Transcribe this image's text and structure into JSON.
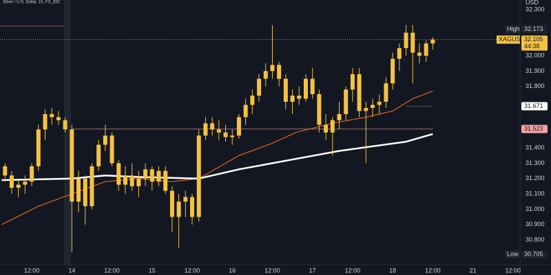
{
  "chart_data": {
    "type": "candlestick",
    "title": "Silver / U.S. Dollar, 1h, FX_IDC",
    "unit": "USD",
    "xlim": [
      -21.5,
      134.1
    ],
    "ylim": [
      30.639,
      32.363
    ],
    "xticks": [
      {
        "value": -12,
        "label": "12:00"
      },
      {
        "value": 0,
        "label": "14"
      },
      {
        "value": 12,
        "label": "12:00"
      },
      {
        "value": 24,
        "label": "15"
      },
      {
        "value": 36,
        "label": "12:00"
      },
      {
        "value": 48,
        "label": "16"
      },
      {
        "value": 60,
        "label": "12:00"
      },
      {
        "value": 72,
        "label": "17"
      },
      {
        "value": 84,
        "label": "12:00"
      },
      {
        "value": 96,
        "label": "18"
      },
      {
        "value": 108,
        "label": "12:00"
      },
      {
        "value": 120,
        "label": "21"
      },
      {
        "value": 132,
        "label": "12:00"
      }
    ],
    "yticks": [
      {
        "value": 32.3,
        "label": "32.300"
      },
      {
        "value": 32.0,
        "label": "32.000"
      },
      {
        "value": 31.9,
        "label": "31.900"
      },
      {
        "value": 31.8,
        "label": "31.800"
      },
      {
        "value": 31.4,
        "label": "31.400"
      },
      {
        "value": 31.3,
        "label": "31.300"
      },
      {
        "value": 31.2,
        "label": "31.200"
      },
      {
        "value": 31.1,
        "label": "31.100"
      },
      {
        "value": 31.0,
        "label": "31.000"
      },
      {
        "value": 30.9,
        "label": "30.900"
      },
      {
        "value": 30.8,
        "label": "30.800"
      }
    ],
    "series": [
      {
        "name": "XAGUSD",
        "color": "#f5c242",
        "x": [
          -20,
          -18,
          -16,
          -14,
          -12,
          -10,
          -8,
          -6,
          -4,
          -2,
          0,
          2,
          4,
          6,
          8,
          10,
          12,
          14,
          16,
          18,
          20,
          22,
          24,
          26,
          28,
          30,
          32,
          34,
          36,
          38,
          40,
          42,
          44,
          46,
          48,
          50,
          52,
          54,
          56,
          58,
          60,
          62,
          64,
          66,
          68,
          70,
          72,
          74,
          76,
          78,
          80,
          82,
          84,
          86,
          88,
          90,
          92,
          94,
          96,
          98,
          100,
          102,
          104,
          106,
          108
        ],
        "open": [
          31.28,
          31.22,
          31.14,
          31.16,
          31.18,
          31.28,
          31.52,
          31.62,
          31.6,
          31.58,
          31.52,
          31.05,
          31.2,
          31.02,
          31.28,
          31.42,
          31.48,
          31.3,
          31.16,
          31.22,
          31.15,
          31.2,
          31.26,
          31.18,
          31.25,
          31.12,
          30.95,
          31.05,
          31.08,
          30.95,
          31.48,
          31.56,
          31.52,
          31.5,
          31.47,
          31.48,
          31.6,
          31.68,
          31.74,
          31.85,
          31.9,
          31.94,
          31.85,
          31.7,
          31.74,
          31.72,
          31.85,
          31.75,
          31.55,
          31.5,
          31.58,
          31.62,
          31.78,
          31.88,
          31.64,
          31.66,
          31.68,
          31.7,
          31.82,
          31.98,
          32.05,
          32.15,
          32.02,
          32.0,
          32.08
        ],
        "high": [
          31.3,
          31.25,
          31.2,
          31.22,
          31.3,
          31.55,
          31.65,
          31.66,
          31.64,
          31.6,
          31.55,
          31.25,
          31.22,
          31.3,
          31.45,
          31.55,
          31.5,
          31.32,
          31.28,
          31.3,
          31.25,
          31.3,
          31.28,
          31.28,
          31.28,
          31.15,
          31.1,
          31.12,
          31.1,
          31.52,
          31.6,
          31.6,
          31.58,
          31.55,
          31.52,
          31.62,
          31.72,
          31.78,
          31.88,
          31.95,
          32.2,
          31.96,
          31.88,
          31.78,
          31.8,
          31.88,
          31.92,
          31.78,
          31.62,
          31.6,
          31.7,
          31.8,
          31.92,
          31.92,
          31.7,
          31.72,
          31.75,
          31.86,
          32.02,
          32.08,
          32.2,
          32.2,
          32.08,
          32.1,
          32.12
        ],
        "low": [
          31.2,
          31.1,
          31.08,
          31.1,
          31.15,
          31.25,
          31.45,
          31.55,
          31.55,
          31.5,
          30.72,
          30.98,
          30.9,
          31.0,
          31.25,
          31.38,
          31.28,
          31.12,
          31.1,
          31.12,
          31.08,
          31.15,
          31.12,
          31.15,
          31.1,
          30.85,
          30.75,
          30.95,
          30.9,
          30.92,
          31.45,
          31.48,
          31.45,
          31.44,
          31.42,
          31.46,
          31.55,
          31.62,
          31.7,
          31.8,
          31.85,
          31.8,
          31.65,
          31.62,
          31.68,
          31.7,
          31.72,
          31.5,
          31.45,
          31.35,
          31.52,
          31.58,
          31.7,
          31.6,
          31.3,
          31.6,
          31.62,
          31.66,
          31.78,
          31.9,
          32.0,
          31.82,
          31.95,
          31.96,
          32.04
        ],
        "close": [
          31.22,
          31.14,
          31.16,
          31.18,
          31.28,
          31.52,
          31.62,
          31.6,
          31.58,
          31.52,
          31.05,
          31.2,
          31.02,
          31.28,
          31.42,
          31.48,
          31.3,
          31.16,
          31.22,
          31.15,
          31.2,
          31.26,
          31.18,
          31.25,
          31.12,
          30.95,
          31.05,
          31.08,
          30.95,
          31.48,
          31.56,
          31.52,
          31.5,
          31.47,
          31.48,
          31.6,
          31.68,
          31.74,
          31.85,
          31.9,
          31.94,
          31.85,
          31.7,
          31.74,
          31.72,
          31.85,
          31.75,
          31.55,
          31.5,
          31.58,
          31.62,
          31.78,
          31.88,
          31.64,
          31.66,
          31.68,
          31.7,
          31.82,
          31.98,
          32.05,
          32.15,
          32.02,
          32.0,
          32.08,
          32.105
        ]
      }
    ],
    "moving_averages": [
      {
        "color": "#e0641e",
        "x": [
          -21,
          -10,
          0,
          10,
          20,
          30,
          38,
          50,
          60,
          67,
          78,
          88,
          96,
          102,
          108
        ],
        "values": [
          30.9,
          31.02,
          31.1,
          31.18,
          31.2,
          31.18,
          31.2,
          31.35,
          31.43,
          31.5,
          31.56,
          31.6,
          31.64,
          31.72,
          31.77
        ]
      },
      {
        "color": "#ffffff",
        "x": [
          -21,
          0,
          10,
          20,
          38,
          50,
          60,
          70,
          80,
          90,
          100,
          108
        ],
        "values": [
          31.19,
          31.2,
          31.22,
          31.21,
          31.2,
          31.26,
          31.3,
          31.34,
          31.38,
          31.41,
          31.44,
          31.49
        ]
      }
    ],
    "high": {
      "label": "High",
      "value": 32.173
    },
    "low": {
      "label": "Low",
      "value": 30.705
    },
    "last_price": {
      "value": 32.105,
      "countdown": "44:38",
      "color": "#f5c242"
    },
    "price_lines": [
      {
        "value": 31.671,
        "color": "#ffffff"
      },
      {
        "value": 31.523,
        "color": "#f7a1a1"
      }
    ]
  }
}
